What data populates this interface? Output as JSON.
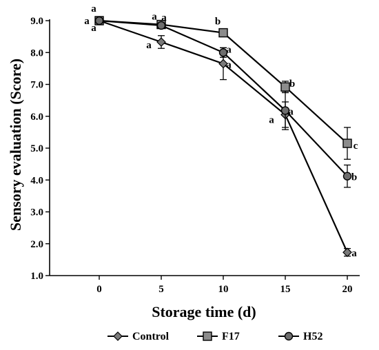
{
  "chart_data": {
    "type": "line",
    "xlabel": "Storage time (d)",
    "ylabel": "Sensory evaluation (Score)",
    "x": [
      0,
      5,
      10,
      15,
      20
    ],
    "xticks": [
      "0",
      "5",
      "10",
      "15",
      "20"
    ],
    "xlim": [
      -4,
      21
    ],
    "ylim": [
      1.0,
      9.0
    ],
    "yticks": [
      "1.0",
      "2.0",
      "3.0",
      "4.0",
      "5.0",
      "6.0",
      "7.0",
      "8.0",
      "9.0"
    ],
    "grid": false,
    "legend_position": "bottom",
    "series": [
      {
        "name": "Control",
        "marker": "diamond",
        "color": "#7a7a7a",
        "values": [
          9.0,
          8.33,
          7.65,
          6.05,
          1.73
        ],
        "errors": [
          0.05,
          0.2,
          0.5,
          0.4,
          0.12
        ],
        "letters": [
          "a",
          "a",
          "a",
          "a",
          "a"
        ]
      },
      {
        "name": "F17",
        "marker": "square",
        "color": "#8c8c8c",
        "values": [
          9.0,
          8.88,
          8.62,
          6.92,
          5.15
        ],
        "errors": [
          0.05,
          0.08,
          0.08,
          0.18,
          0.5
        ],
        "letters": [
          "a",
          "a",
          "b",
          "b",
          "c"
        ]
      },
      {
        "name": "H52",
        "marker": "circle",
        "color": "#6e6e6e",
        "values": [
          9.0,
          8.85,
          8.0,
          6.18,
          4.12
        ],
        "errors": [
          0.05,
          0.08,
          0.15,
          0.6,
          0.35
        ],
        "letters": [
          "a",
          "a",
          "a",
          "a",
          "b"
        ]
      }
    ],
    "annotations": [
      {
        "x": 0,
        "letters": [
          "a",
          "a",
          "a"
        ]
      }
    ]
  }
}
